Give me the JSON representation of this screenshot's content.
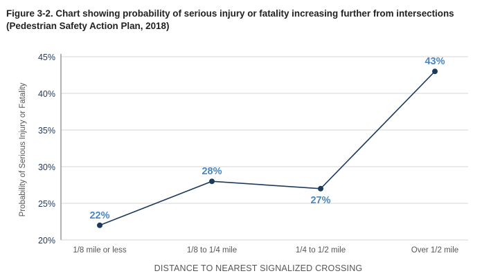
{
  "figure": {
    "title_line1": "Figure 3-2. Chart showing probability of serious injury or fatality increasing further from intersections",
    "title_line2": "(Pedestrian Safety Action Plan, 2018)"
  },
  "chart_data": {
    "type": "line",
    "title": "Figure 3-2. Chart showing probability of serious injury or fatality increasing further from intersections (Pedestrian Safety Action Plan, 2018)",
    "xlabel": "DISTANCE TO NEAREST SIGNALIZED CROSSING",
    "ylabel": "Probability of Serious Injury or Fatality",
    "categories": [
      "1/8 mile or less",
      "1/8 to 1/4 mile",
      "1/4 to 1/2 mile",
      "Over 1/2 mile"
    ],
    "values": [
      22,
      28,
      27,
      43
    ],
    "data_labels": [
      "22%",
      "28%",
      "27%",
      "43%"
    ],
    "label_position": [
      "above",
      "above",
      "below",
      "above"
    ],
    "ylim": [
      20,
      45
    ],
    "yticks": [
      20,
      25,
      30,
      35,
      40,
      45
    ],
    "ytick_labels": [
      "20%",
      "25%",
      "30%",
      "35%",
      "40%",
      "45%"
    ],
    "grid": true,
    "legend": "none",
    "line_color": "#1b3a5c",
    "label_color": "#4a86c0",
    "grid_color": "#d6d6d6"
  }
}
